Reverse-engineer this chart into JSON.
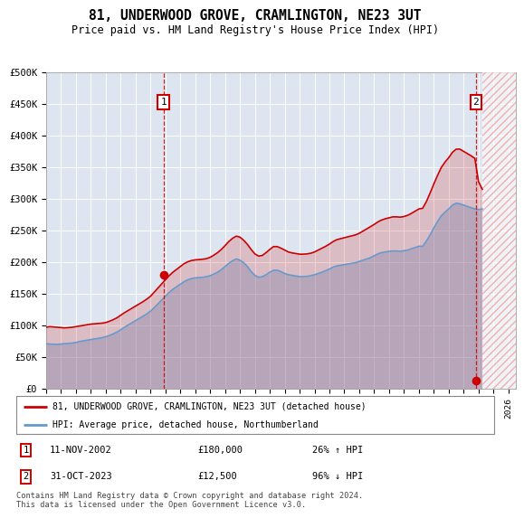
{
  "title": "81, UNDERWOOD GROVE, CRAMLINGTON, NE23 3UT",
  "subtitle": "Price paid vs. HM Land Registry's House Price Index (HPI)",
  "ylabel_ticks": [
    "£0",
    "£50K",
    "£100K",
    "£150K",
    "£200K",
    "£250K",
    "£300K",
    "£350K",
    "£400K",
    "£450K",
    "£500K"
  ],
  "ylim": [
    0,
    500000
  ],
  "xlim_start": 1995.0,
  "xlim_end": 2026.5,
  "marker1_x": 2002.87,
  "marker1_y": 180000,
  "marker2_x": 2023.83,
  "marker2_y": 12500,
  "hpi_color": "#6699cc",
  "price_color": "#cc0000",
  "bg_color": "#dde6f0",
  "legend_label_price": "81, UNDERWOOD GROVE, CRAMLINGTON, NE23 3UT (detached house)",
  "legend_label_hpi": "HPI: Average price, detached house, Northumberland",
  "marker1_date": "11-NOV-2002",
  "marker1_price": "£180,000",
  "marker1_hpi": "26% ↑ HPI",
  "marker2_date": "31-OCT-2023",
  "marker2_price": "£12,500",
  "marker2_hpi": "96% ↓ HPI",
  "footer": "Contains HM Land Registry data © Crown copyright and database right 2024.\nThis data is licensed under the Open Government Licence v3.0.",
  "hpi_data": [
    [
      1995.0,
      71000
    ],
    [
      1995.25,
      70500
    ],
    [
      1995.5,
      70000
    ],
    [
      1995.75,
      70000
    ],
    [
      1996.0,
      70500
    ],
    [
      1996.25,
      71000
    ],
    [
      1996.5,
      71500
    ],
    [
      1996.75,
      72000
    ],
    [
      1997.0,
      73000
    ],
    [
      1997.25,
      74500
    ],
    [
      1997.5,
      75500
    ],
    [
      1997.75,
      76500
    ],
    [
      1998.0,
      77500
    ],
    [
      1998.25,
      78500
    ],
    [
      1998.5,
      79500
    ],
    [
      1998.75,
      80500
    ],
    [
      1999.0,
      82000
    ],
    [
      1999.25,
      84000
    ],
    [
      1999.5,
      86500
    ],
    [
      1999.75,
      89500
    ],
    [
      2000.0,
      93000
    ],
    [
      2000.25,
      97000
    ],
    [
      2000.5,
      100500
    ],
    [
      2000.75,
      104000
    ],
    [
      2001.0,
      107500
    ],
    [
      2001.25,
      111000
    ],
    [
      2001.5,
      114500
    ],
    [
      2001.75,
      118000
    ],
    [
      2002.0,
      122500
    ],
    [
      2002.25,
      128000
    ],
    [
      2002.5,
      134000
    ],
    [
      2002.75,
      140000
    ],
    [
      2003.0,
      146000
    ],
    [
      2003.25,
      152000
    ],
    [
      2003.5,
      157000
    ],
    [
      2003.75,
      161000
    ],
    [
      2004.0,
      165000
    ],
    [
      2004.25,
      169000
    ],
    [
      2004.5,
      172000
    ],
    [
      2004.75,
      174000
    ],
    [
      2005.0,
      175000
    ],
    [
      2005.25,
      175500
    ],
    [
      2005.5,
      176000
    ],
    [
      2005.75,
      177000
    ],
    [
      2006.0,
      178500
    ],
    [
      2006.25,
      181000
    ],
    [
      2006.5,
      184000
    ],
    [
      2006.75,
      188000
    ],
    [
      2007.0,
      193000
    ],
    [
      2007.25,
      198000
    ],
    [
      2007.5,
      202000
    ],
    [
      2007.75,
      205000
    ],
    [
      2008.0,
      203000
    ],
    [
      2008.25,
      199000
    ],
    [
      2008.5,
      193000
    ],
    [
      2008.75,
      185000
    ],
    [
      2009.0,
      179000
    ],
    [
      2009.25,
      176000
    ],
    [
      2009.5,
      177000
    ],
    [
      2009.75,
      180000
    ],
    [
      2010.0,
      184000
    ],
    [
      2010.25,
      187000
    ],
    [
      2010.5,
      187000
    ],
    [
      2010.75,
      185000
    ],
    [
      2011.0,
      182000
    ],
    [
      2011.25,
      180000
    ],
    [
      2011.5,
      179000
    ],
    [
      2011.75,
      178000
    ],
    [
      2012.0,
      177000
    ],
    [
      2012.25,
      177000
    ],
    [
      2012.5,
      177500
    ],
    [
      2012.75,
      178500
    ],
    [
      2013.0,
      180000
    ],
    [
      2013.25,
      182000
    ],
    [
      2013.5,
      184000
    ],
    [
      2013.75,
      186500
    ],
    [
      2014.0,
      189000
    ],
    [
      2014.25,
      192000
    ],
    [
      2014.5,
      194000
    ],
    [
      2014.75,
      195000
    ],
    [
      2015.0,
      196000
    ],
    [
      2015.25,
      197000
    ],
    [
      2015.5,
      198000
    ],
    [
      2015.75,
      199000
    ],
    [
      2016.0,
      201000
    ],
    [
      2016.25,
      203000
    ],
    [
      2016.5,
      205000
    ],
    [
      2016.75,
      207000
    ],
    [
      2017.0,
      210000
    ],
    [
      2017.25,
      213000
    ],
    [
      2017.5,
      215000
    ],
    [
      2017.75,
      216000
    ],
    [
      2018.0,
      217000
    ],
    [
      2018.25,
      217500
    ],
    [
      2018.5,
      217500
    ],
    [
      2018.75,
      217000
    ],
    [
      2019.0,
      218000
    ],
    [
      2019.25,
      219000
    ],
    [
      2019.5,
      221000
    ],
    [
      2019.75,
      223000
    ],
    [
      2020.0,
      225000
    ],
    [
      2020.25,
      225000
    ],
    [
      2020.5,
      233000
    ],
    [
      2020.75,
      243000
    ],
    [
      2021.0,
      254000
    ],
    [
      2021.25,
      264000
    ],
    [
      2021.5,
      273000
    ],
    [
      2021.75,
      279000
    ],
    [
      2022.0,
      284000
    ],
    [
      2022.25,
      290000
    ],
    [
      2022.5,
      293000
    ],
    [
      2022.75,
      292000
    ],
    [
      2023.0,
      290000
    ],
    [
      2023.25,
      288000
    ],
    [
      2023.5,
      286000
    ],
    [
      2023.75,
      284000
    ],
    [
      2024.0,
      283000
    ],
    [
      2024.25,
      284000
    ]
  ],
  "price_data": [
    [
      1995.0,
      97000
    ],
    [
      1995.25,
      98000
    ],
    [
      1995.5,
      97500
    ],
    [
      1995.75,
      97000
    ],
    [
      1996.0,
      96500
    ],
    [
      1996.25,
      96000
    ],
    [
      1996.5,
      96500
    ],
    [
      1996.75,
      97000
    ],
    [
      1997.0,
      98000
    ],
    [
      1997.25,
      99000
    ],
    [
      1997.5,
      100000
    ],
    [
      1997.75,
      101000
    ],
    [
      1998.0,
      102000
    ],
    [
      1998.25,
      102500
    ],
    [
      1998.5,
      103000
    ],
    [
      1998.75,
      103500
    ],
    [
      1999.0,
      104500
    ],
    [
      1999.25,
      106500
    ],
    [
      1999.5,
      109000
    ],
    [
      1999.75,
      112000
    ],
    [
      2000.0,
      116000
    ],
    [
      2000.25,
      120000
    ],
    [
      2000.5,
      123500
    ],
    [
      2000.75,
      127000
    ],
    [
      2001.0,
      130500
    ],
    [
      2001.25,
      134000
    ],
    [
      2001.5,
      137500
    ],
    [
      2001.75,
      141500
    ],
    [
      2002.0,
      146000
    ],
    [
      2002.25,
      152500
    ],
    [
      2002.5,
      159000
    ],
    [
      2002.75,
      165500
    ],
    [
      2003.0,
      172000
    ],
    [
      2003.25,
      178500
    ],
    [
      2003.5,
      184000
    ],
    [
      2003.75,
      188500
    ],
    [
      2004.0,
      193000
    ],
    [
      2004.25,
      197500
    ],
    [
      2004.5,
      200500
    ],
    [
      2004.75,
      202500
    ],
    [
      2005.0,
      203500
    ],
    [
      2005.25,
      204000
    ],
    [
      2005.5,
      204500
    ],
    [
      2005.75,
      205500
    ],
    [
      2006.0,
      207500
    ],
    [
      2006.25,
      211000
    ],
    [
      2006.5,
      215000
    ],
    [
      2006.75,
      220000
    ],
    [
      2007.0,
      226000
    ],
    [
      2007.25,
      232500
    ],
    [
      2007.5,
      237500
    ],
    [
      2007.75,
      241000
    ],
    [
      2008.0,
      239500
    ],
    [
      2008.25,
      234500
    ],
    [
      2008.5,
      228000
    ],
    [
      2008.75,
      220000
    ],
    [
      2009.0,
      213000
    ],
    [
      2009.25,
      209500
    ],
    [
      2009.5,
      210500
    ],
    [
      2009.75,
      215000
    ],
    [
      2010.0,
      220000
    ],
    [
      2010.25,
      224500
    ],
    [
      2010.5,
      224500
    ],
    [
      2010.75,
      222000
    ],
    [
      2011.0,
      219000
    ],
    [
      2011.25,
      216000
    ],
    [
      2011.5,
      214500
    ],
    [
      2011.75,
      213500
    ],
    [
      2012.0,
      212500
    ],
    [
      2012.25,
      212500
    ],
    [
      2012.5,
      213000
    ],
    [
      2012.75,
      214000
    ],
    [
      2013.0,
      216000
    ],
    [
      2013.25,
      219000
    ],
    [
      2013.5,
      222000
    ],
    [
      2013.75,
      225000
    ],
    [
      2014.0,
      228500
    ],
    [
      2014.25,
      232500
    ],
    [
      2014.5,
      235500
    ],
    [
      2014.75,
      237000
    ],
    [
      2015.0,
      238500
    ],
    [
      2015.25,
      240000
    ],
    [
      2015.5,
      241500
    ],
    [
      2015.75,
      243000
    ],
    [
      2016.0,
      245500
    ],
    [
      2016.25,
      249000
    ],
    [
      2016.5,
      252500
    ],
    [
      2016.75,
      256000
    ],
    [
      2017.0,
      259500
    ],
    [
      2017.25,
      263500
    ],
    [
      2017.5,
      266500
    ],
    [
      2017.75,
      268500
    ],
    [
      2018.0,
      270000
    ],
    [
      2018.25,
      271500
    ],
    [
      2018.5,
      271500
    ],
    [
      2018.75,
      271000
    ],
    [
      2019.0,
      272000
    ],
    [
      2019.25,
      274000
    ],
    [
      2019.5,
      277000
    ],
    [
      2019.75,
      280500
    ],
    [
      2020.0,
      284000
    ],
    [
      2020.25,
      285000
    ],
    [
      2020.5,
      295500
    ],
    [
      2020.75,
      309000
    ],
    [
      2021.0,
      323500
    ],
    [
      2021.25,
      337000
    ],
    [
      2021.5,
      349500
    ],
    [
      2021.75,
      358000
    ],
    [
      2022.0,
      365000
    ],
    [
      2022.25,
      373500
    ],
    [
      2022.5,
      378500
    ],
    [
      2022.75,
      378500
    ],
    [
      2023.0,
      375000
    ],
    [
      2023.25,
      371500
    ],
    [
      2023.5,
      368000
    ],
    [
      2023.75,
      364000
    ],
    [
      2024.0,
      327000
    ],
    [
      2024.25,
      315000
    ]
  ]
}
